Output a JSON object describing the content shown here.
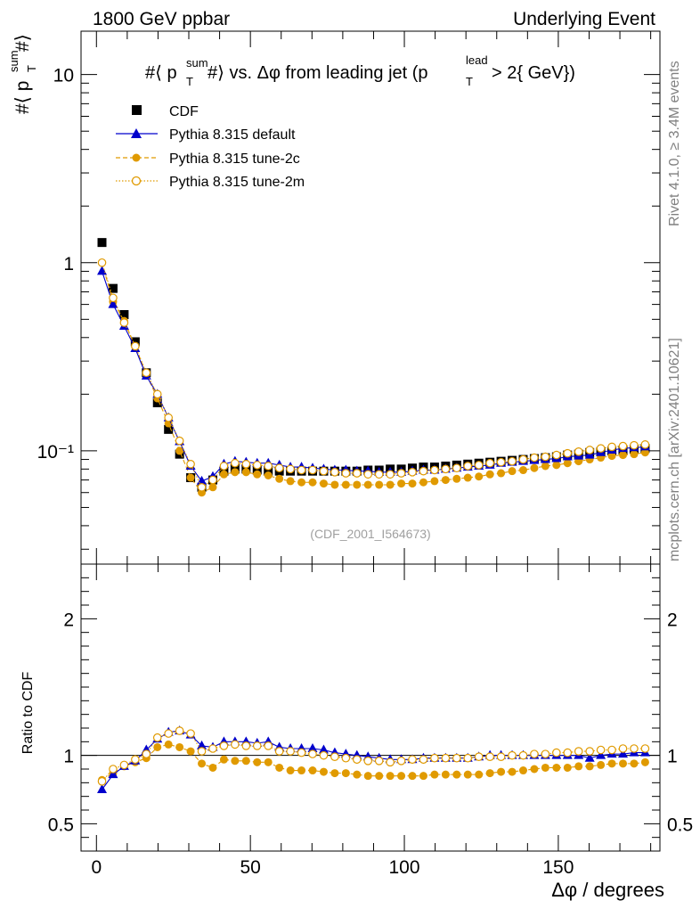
{
  "header": {
    "left": "1800 GeV ppbar",
    "right": "Underlying Event",
    "side_rivet": "Rivet 4.1.0, ≥ 3.4M events",
    "side_mcplots": "mcplots.cern.ch [arXiv:2401.10621]"
  },
  "colors": {
    "cdf": "#000000",
    "default": "#0000cc",
    "tune2c": "#e09a00",
    "tune2m": "#e09a00"
  },
  "chart_data": [
    {
      "type": "scatter",
      "panel": "main",
      "title": "#⟨ p_T^sum#⟩ vs. Δφ from leading jet  (p_T^lead > 2{ GeV})",
      "ylabel": "#⟨ p_T^sum#⟩",
      "xlabel": "Δφ / degrees",
      "yscale": "log",
      "xlim": [
        -5,
        183
      ],
      "ylim": [
        0.025,
        17
      ],
      "ytick_labels": [
        "10⁻¹",
        "1",
        "10"
      ],
      "watermark": "(CDF_2001_I564673)",
      "legend": [
        "CDF",
        "Pythia 8.315 default",
        "Pythia 8.315 tune-2c",
        "Pythia 8.315 tune-2m"
      ],
      "x": [
        1.8,
        5.4,
        9.0,
        12.6,
        16.2,
        19.8,
        23.4,
        27.0,
        30.6,
        34.2,
        37.8,
        41.4,
        45.0,
        48.6,
        52.2,
        55.8,
        59.4,
        63.0,
        66.6,
        70.2,
        73.8,
        77.4,
        81.0,
        84.6,
        88.2,
        91.8,
        95.4,
        99.0,
        102.6,
        106.2,
        109.8,
        113.4,
        117.0,
        120.6,
        124.2,
        127.8,
        131.4,
        135.0,
        138.6,
        142.2,
        145.8,
        149.4,
        153.0,
        156.6,
        160.2,
        163.8,
        167.4,
        171.0,
        174.6,
        178.2
      ],
      "series": [
        {
          "name": "CDF",
          "values": [
            1.28,
            0.73,
            0.53,
            0.38,
            0.26,
            0.18,
            0.13,
            0.096,
            0.072,
            0.064,
            0.07,
            0.078,
            0.08,
            0.08,
            0.079,
            0.078,
            0.078,
            0.078,
            0.078,
            0.078,
            0.078,
            0.078,
            0.078,
            0.078,
            0.079,
            0.079,
            0.08,
            0.08,
            0.081,
            0.082,
            0.082,
            0.083,
            0.084,
            0.085,
            0.086,
            0.087,
            0.088,
            0.089,
            0.09,
            0.091,
            0.092,
            0.093,
            0.095,
            0.096,
            0.098,
            0.099,
            0.1,
            0.101,
            0.102,
            0.103
          ]
        },
        {
          "name": "Pythia 8.315 default",
          "values": [
            0.9,
            0.6,
            0.46,
            0.35,
            0.25,
            0.2,
            0.15,
            0.112,
            0.083,
            0.069,
            0.073,
            0.085,
            0.088,
            0.087,
            0.086,
            0.086,
            0.084,
            0.082,
            0.082,
            0.081,
            0.08,
            0.079,
            0.079,
            0.078,
            0.078,
            0.077,
            0.077,
            0.077,
            0.078,
            0.079,
            0.079,
            0.08,
            0.081,
            0.082,
            0.083,
            0.084,
            0.086,
            0.087,
            0.088,
            0.089,
            0.09,
            0.091,
            0.093,
            0.094,
            0.095,
            0.098,
            0.101,
            0.103,
            0.104,
            0.105
          ]
        },
        {
          "name": "Pythia 8.315 tune-2c",
          "values": [
            1.0,
            0.62,
            0.49,
            0.36,
            0.255,
            0.19,
            0.14,
            0.1,
            0.072,
            0.06,
            0.064,
            0.075,
            0.077,
            0.077,
            0.075,
            0.074,
            0.071,
            0.069,
            0.068,
            0.068,
            0.067,
            0.066,
            0.066,
            0.066,
            0.066,
            0.066,
            0.066,
            0.067,
            0.067,
            0.068,
            0.069,
            0.07,
            0.071,
            0.072,
            0.073,
            0.075,
            0.076,
            0.078,
            0.079,
            0.081,
            0.083,
            0.084,
            0.086,
            0.088,
            0.09,
            0.092,
            0.094,
            0.095,
            0.096,
            0.098
          ]
        },
        {
          "name": "Pythia 8.315 tune-2m",
          "values": [
            1.0,
            0.65,
            0.48,
            0.36,
            0.26,
            0.2,
            0.15,
            0.113,
            0.085,
            0.064,
            0.07,
            0.083,
            0.086,
            0.085,
            0.084,
            0.083,
            0.081,
            0.08,
            0.079,
            0.079,
            0.078,
            0.077,
            0.076,
            0.076,
            0.075,
            0.075,
            0.075,
            0.076,
            0.077,
            0.078,
            0.079,
            0.08,
            0.081,
            0.083,
            0.084,
            0.086,
            0.087,
            0.088,
            0.09,
            0.092,
            0.093,
            0.095,
            0.097,
            0.099,
            0.101,
            0.103,
            0.105,
            0.106,
            0.107,
            0.108
          ]
        }
      ]
    },
    {
      "type": "line",
      "panel": "ratio",
      "ylabel": "Ratio to CDF",
      "xlabel": "Δφ / degrees",
      "xlim": [
        -5,
        183
      ],
      "ylim": [
        0.3,
        2.4
      ],
      "ytick_labels": [
        "0.5",
        "1",
        "2"
      ],
      "xtick_labels": [
        "0",
        "50",
        "100",
        "150"
      ],
      "x": [
        1.8,
        5.4,
        9.0,
        12.6,
        16.2,
        19.8,
        23.4,
        27.0,
        30.6,
        34.2,
        37.8,
        41.4,
        45.0,
        48.6,
        52.2,
        55.8,
        59.4,
        63.0,
        66.6,
        70.2,
        73.8,
        77.4,
        81.0,
        84.6,
        88.2,
        91.8,
        95.4,
        99.0,
        102.6,
        106.2,
        109.8,
        113.4,
        117.0,
        120.6,
        124.2,
        127.8,
        131.4,
        135.0,
        138.6,
        142.2,
        145.8,
        149.4,
        153.0,
        156.6,
        160.2,
        163.8,
        167.4,
        171.0,
        174.6,
        178.2
      ],
      "series": [
        {
          "name": "Pythia 8.315 default",
          "values": [
            0.75,
            0.86,
            0.92,
            0.96,
            1.04,
            1.12,
            1.17,
            1.18,
            1.15,
            1.07,
            1.06,
            1.1,
            1.1,
            1.1,
            1.09,
            1.1,
            1.06,
            1.05,
            1.05,
            1.05,
            1.04,
            1.02,
            1.01,
            1.0,
            0.99,
            0.98,
            0.97,
            0.97,
            0.97,
            0.98,
            0.98,
            0.98,
            0.98,
            0.98,
            0.99,
            1.0,
            1.0,
            1.0,
            1.0,
            1.0,
            1.0,
            1.0,
            1.0,
            1.0,
            0.98,
            1.0,
            1.01,
            1.01,
            1.02,
            1.02
          ]
        },
        {
          "name": "Pythia 8.315 tune-2c",
          "values": [
            0.82,
            0.87,
            0.92,
            0.95,
            0.98,
            1.06,
            1.08,
            1.06,
            1.03,
            0.94,
            0.91,
            0.97,
            0.96,
            0.96,
            0.95,
            0.95,
            0.91,
            0.89,
            0.89,
            0.89,
            0.88,
            0.87,
            0.87,
            0.86,
            0.85,
            0.85,
            0.85,
            0.85,
            0.85,
            0.85,
            0.86,
            0.86,
            0.86,
            0.86,
            0.86,
            0.87,
            0.88,
            0.88,
            0.89,
            0.9,
            0.91,
            0.91,
            0.91,
            0.92,
            0.92,
            0.93,
            0.94,
            0.94,
            0.94,
            0.95
          ]
        },
        {
          "name": "Pythia 8.315 tune-2m",
          "values": [
            0.81,
            0.9,
            0.93,
            0.97,
            1.01,
            1.13,
            1.16,
            1.18,
            1.16,
            1.03,
            1.05,
            1.07,
            1.08,
            1.07,
            1.07,
            1.07,
            1.03,
            1.03,
            1.02,
            1.01,
            1.0,
            0.99,
            0.98,
            0.97,
            0.96,
            0.96,
            0.95,
            0.96,
            0.97,
            0.97,
            0.98,
            0.98,
            0.98,
            0.98,
            0.99,
            0.99,
            0.99,
            1.0,
            1.0,
            1.01,
            1.01,
            1.02,
            1.02,
            1.03,
            1.03,
            1.04,
            1.04,
            1.05,
            1.05,
            1.05
          ]
        }
      ]
    }
  ]
}
